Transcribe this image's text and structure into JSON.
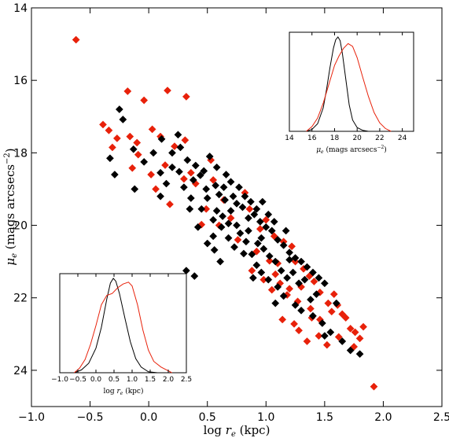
{
  "chart_data": [
    {
      "type": "scatter",
      "xlabel": "log r_e (kpc)",
      "ylabel": "μ_e (mags arcsecs^-2)",
      "xlim": [
        -1.0,
        2.5
      ],
      "ylim": [
        25.0,
        14.0
      ],
      "y_inverted": true,
      "xticks": [
        -1.0,
        -0.5,
        0.0,
        0.5,
        1.0,
        1.5,
        2.0,
        2.5
      ],
      "yticks": [
        14,
        16,
        18,
        20,
        22,
        24
      ],
      "marker": "diamond",
      "grid": false,
      "series": [
        {
          "color": "#e8210a",
          "points": [
            [
              -0.62,
              14.88
            ],
            [
              -0.18,
              16.3
            ],
            [
              -0.04,
              16.55
            ],
            [
              0.16,
              16.28
            ],
            [
              0.32,
              16.45
            ],
            [
              -0.39,
              17.22
            ],
            [
              -0.34,
              17.38
            ],
            [
              -0.27,
              17.6
            ],
            [
              -0.31,
              17.85
            ],
            [
              -0.16,
              17.55
            ],
            [
              0.03,
              17.35
            ],
            [
              0.1,
              17.55
            ],
            [
              -0.09,
              18.05
            ],
            [
              0.22,
              17.82
            ],
            [
              0.31,
              17.65
            ],
            [
              0.14,
              18.34
            ],
            [
              0.3,
              18.72
            ],
            [
              0.02,
              18.6
            ],
            [
              0.06,
              19.0
            ],
            [
              -0.14,
              18.42
            ],
            [
              0.4,
              18.85
            ],
            [
              0.55,
              18.75
            ],
            [
              0.49,
              19.55
            ],
            [
              0.64,
              19.3
            ],
            [
              0.7,
              19.8
            ],
            [
              0.82,
              19.1
            ],
            [
              0.86,
              19.55
            ],
            [
              0.95,
              20.1
            ],
            [
              1.0,
              19.85
            ],
            [
              1.07,
              20.3
            ],
            [
              1.15,
              20.45
            ],
            [
              0.76,
              20.4
            ],
            [
              0.92,
              20.72
            ],
            [
              1.03,
              20.98
            ],
            [
              1.1,
              21.05
            ],
            [
              1.25,
              21.0
            ],
            [
              1.22,
              20.58
            ],
            [
              1.32,
              21.2
            ],
            [
              1.37,
              21.4
            ],
            [
              1.41,
              21.55
            ],
            [
              1.2,
              21.75
            ],
            [
              0.98,
              21.5
            ],
            [
              1.05,
              21.78
            ],
            [
              1.12,
              21.6
            ],
            [
              1.46,
              21.85
            ],
            [
              1.53,
              22.15
            ],
            [
              1.58,
              21.9
            ],
            [
              1.61,
              22.2
            ],
            [
              1.65,
              22.45
            ],
            [
              1.46,
              22.6
            ],
            [
              1.38,
              22.3
            ],
            [
              1.27,
              22.1
            ],
            [
              1.24,
              22.72
            ],
            [
              1.14,
              22.6
            ],
            [
              1.28,
              22.9
            ],
            [
              1.35,
              23.2
            ],
            [
              1.45,
              23.05
            ],
            [
              1.52,
              23.3
            ],
            [
              1.68,
              22.55
            ],
            [
              1.72,
              22.85
            ],
            [
              1.76,
              22.95
            ],
            [
              1.8,
              23.12
            ],
            [
              1.75,
              23.35
            ],
            [
              1.83,
              22.8
            ],
            [
              1.56,
              22.38
            ],
            [
              1.62,
              23.08
            ],
            [
              1.92,
              24.45
            ],
            [
              1.3,
              21.7
            ],
            [
              1.18,
              21.92
            ],
            [
              1.39,
              22.55
            ],
            [
              0.88,
              21.25
            ],
            [
              1.08,
              21.35
            ],
            [
              0.6,
              20.0
            ],
            [
              0.53,
              18.2
            ],
            [
              0.36,
              18.55
            ],
            [
              -0.1,
              17.72
            ],
            [
              0.18,
              19.42
            ],
            [
              0.45,
              19.98
            ]
          ]
        },
        {
          "color": "#000000",
          "points": [
            [
              -0.25,
              16.8
            ],
            [
              -0.22,
              17.08
            ],
            [
              -0.33,
              18.15
            ],
            [
              -0.29,
              18.6
            ],
            [
              -0.12,
              19.0
            ],
            [
              -0.13,
              17.9
            ],
            [
              -0.04,
              18.25
            ],
            [
              0.04,
              18.0
            ],
            [
              0.11,
              17.62
            ],
            [
              0.2,
              18.0
            ],
            [
              0.27,
              17.85
            ],
            [
              0.33,
              18.2
            ],
            [
              0.26,
              18.52
            ],
            [
              0.38,
              18.75
            ],
            [
              0.44,
              18.62
            ],
            [
              0.49,
              19.0
            ],
            [
              0.57,
              18.9
            ],
            [
              0.6,
              19.15
            ],
            [
              0.65,
              19.3
            ],
            [
              0.7,
              19.6
            ],
            [
              0.75,
              19.4
            ],
            [
              0.8,
              19.5
            ],
            [
              0.85,
              19.8
            ],
            [
              0.9,
              19.7
            ],
            [
              0.95,
              19.9
            ],
            [
              1.0,
              20.05
            ],
            [
              1.05,
              20.15
            ],
            [
              1.1,
              20.4
            ],
            [
              1.15,
              20.55
            ],
            [
              1.2,
              20.75
            ],
            [
              1.25,
              20.9
            ],
            [
              1.3,
              21.0
            ],
            [
              1.35,
              21.15
            ],
            [
              1.4,
              21.3
            ],
            [
              1.45,
              21.45
            ],
            [
              1.5,
              21.6
            ],
            [
              0.55,
              20.3
            ],
            [
              0.62,
              20.05
            ],
            [
              0.68,
              20.35
            ],
            [
              0.73,
              20.6
            ],
            [
              0.78,
              20.22
            ],
            [
              0.83,
              20.45
            ],
            [
              0.88,
              20.8
            ],
            [
              0.93,
              20.5
            ],
            [
              0.98,
              20.65
            ],
            [
              1.03,
              20.85
            ],
            [
              1.08,
              21.0
            ],
            [
              1.13,
              21.25
            ],
            [
              1.18,
              21.45
            ],
            [
              1.23,
              21.3
            ],
            [
              1.28,
              21.6
            ],
            [
              0.45,
              19.55
            ],
            [
              0.5,
              19.25
            ],
            [
              0.58,
              19.6
            ],
            [
              0.63,
              19.75
            ],
            [
              0.68,
              19.95
            ],
            [
              0.72,
              19.2
            ],
            [
              0.77,
              18.95
            ],
            [
              0.82,
              19.2
            ],
            [
              0.87,
              19.35
            ],
            [
              0.92,
              19.55
            ],
            [
              0.97,
              19.35
            ],
            [
              1.02,
              19.7
            ],
            [
              1.07,
              19.9
            ],
            [
              0.4,
              18.35
            ],
            [
              0.47,
              18.5
            ],
            [
              0.52,
              18.1
            ],
            [
              0.66,
              18.6
            ],
            [
              0.7,
              18.8
            ],
            [
              0.1,
              18.55
            ],
            [
              0.15,
              18.85
            ],
            [
              0.2,
              18.4
            ],
            [
              0.35,
              19.55
            ],
            [
              0.42,
              20.05
            ],
            [
              0.5,
              20.5
            ],
            [
              0.56,
              20.68
            ],
            [
              0.61,
              21.0
            ],
            [
              0.32,
              21.25
            ],
            [
              0.39,
              21.4
            ],
            [
              0.92,
              21.1
            ],
            [
              0.96,
              21.3
            ],
            [
              1.02,
              21.5
            ],
            [
              1.1,
              21.7
            ],
            [
              1.15,
              21.95
            ],
            [
              1.25,
              22.2
            ],
            [
              1.3,
              22.35
            ],
            [
              1.4,
              22.5
            ],
            [
              1.48,
              22.7
            ],
            [
              1.55,
              22.95
            ],
            [
              1.5,
              23.05
            ],
            [
              1.65,
              23.2
            ],
            [
              1.72,
              23.45
            ],
            [
              1.8,
              23.55
            ],
            [
              0.25,
              17.5
            ],
            [
              0.1,
              19.2
            ],
            [
              0.3,
              18.95
            ],
            [
              0.36,
              19.25
            ],
            [
              0.55,
              19.85
            ],
            [
              0.75,
              20.0
            ],
            [
              0.85,
              20.15
            ],
            [
              1.17,
              20.15
            ],
            [
              1.2,
              20.95
            ],
            [
              1.33,
              21.5
            ],
            [
              1.43,
              21.9
            ],
            [
              1.38,
              22.05
            ],
            [
              1.6,
              22.15
            ],
            [
              1.08,
              22.15
            ],
            [
              0.96,
              20.35
            ],
            [
              0.64,
              18.95
            ],
            [
              0.58,
              18.4
            ],
            [
              0.81,
              20.78
            ],
            [
              0.89,
              21.45
            ]
          ]
        }
      ]
    },
    {
      "type": "line",
      "inset": "top-right",
      "xlabel": "μ_e (mags arcsec^-2)",
      "xlim": [
        14,
        25
      ],
      "ylim": [
        0,
        1.05
      ],
      "xticks": [
        14,
        16,
        18,
        20,
        22,
        24
      ],
      "grid": false,
      "series": [
        {
          "color": "#000000",
          "x": [
            15.5,
            16.0,
            16.5,
            17.0,
            17.3,
            17.6,
            17.9,
            18.1,
            18.3,
            18.5,
            18.7,
            19.0,
            19.3,
            19.6,
            20.0,
            20.5,
            21.0
          ],
          "y": [
            0.0,
            0.02,
            0.08,
            0.25,
            0.45,
            0.68,
            0.88,
            0.97,
            1.0,
            0.96,
            0.82,
            0.55,
            0.28,
            0.12,
            0.04,
            0.01,
            0.0
          ]
        },
        {
          "color": "#e8210a",
          "x": [
            15.5,
            16.0,
            16.5,
            17.0,
            17.5,
            18.0,
            18.4,
            18.8,
            19.2,
            19.6,
            20.0,
            20.5,
            21.0,
            21.5,
            22.0,
            22.5,
            23.0
          ],
          "y": [
            0.0,
            0.05,
            0.14,
            0.3,
            0.5,
            0.7,
            0.8,
            0.88,
            0.93,
            0.9,
            0.78,
            0.57,
            0.37,
            0.2,
            0.09,
            0.03,
            0.0
          ]
        }
      ]
    },
    {
      "type": "line",
      "inset": "bottom-left",
      "xlabel": "log r_e (kpc)",
      "xlim": [
        -1.0,
        2.5
      ],
      "ylim": [
        0,
        1.05
      ],
      "xticks": [
        -1.0,
        -0.5,
        0.0,
        0.5,
        1.0,
        1.5,
        2.0,
        2.5
      ],
      "grid": false,
      "series": [
        {
          "color": "#000000",
          "x": [
            -0.6,
            -0.4,
            -0.2,
            0.0,
            0.15,
            0.3,
            0.4,
            0.48,
            0.55,
            0.65,
            0.8,
            0.95,
            1.1,
            1.25,
            1.45,
            1.7
          ],
          "y": [
            0.0,
            0.03,
            0.1,
            0.26,
            0.48,
            0.78,
            0.95,
            1.0,
            0.97,
            0.84,
            0.58,
            0.33,
            0.15,
            0.06,
            0.01,
            0.0
          ]
        },
        {
          "color": "#e8210a",
          "x": [
            -0.6,
            -0.45,
            -0.3,
            -0.15,
            0.0,
            0.15,
            0.3,
            0.45,
            0.6,
            0.75,
            0.9,
            1.0,
            1.15,
            1.3,
            1.45,
            1.6,
            1.8,
            2.0,
            2.1
          ],
          "y": [
            0.0,
            0.05,
            0.14,
            0.3,
            0.5,
            0.72,
            0.82,
            0.84,
            0.9,
            0.94,
            0.96,
            0.92,
            0.72,
            0.45,
            0.24,
            0.12,
            0.06,
            0.02,
            0.0
          ]
        }
      ]
    }
  ]
}
